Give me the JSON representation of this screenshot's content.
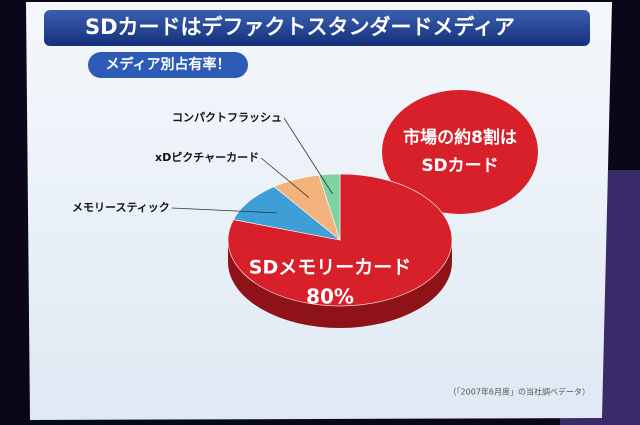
{
  "chart_data": {
    "type": "pie",
    "title": "SDカードはデファクトスタンダードメディア",
    "subtitle": "メディア別占有率！",
    "categories": [
      "SDメモリーカード",
      "メモリースティック",
      "xDピクチャーカード",
      "コンパクトフラッシュ"
    ],
    "values": [
      80,
      10,
      7,
      3
    ],
    "value_labels": [
      "80%",
      null,
      null,
      null
    ],
    "colors": [
      "#d8202b",
      "#3d9fd6",
      "#f4b27c",
      "#7fd3a2"
    ],
    "annotation": [
      "市場の約8割は",
      "SDカード"
    ],
    "footnote": "（「2007年6月度」の当社調べデータ）"
  }
}
